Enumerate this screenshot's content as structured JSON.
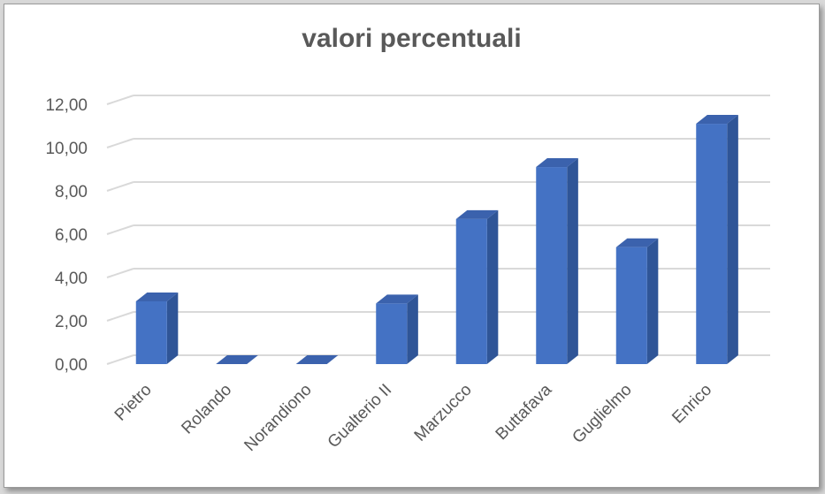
{
  "chart_data": {
    "type": "bar",
    "title": "valori percentuali",
    "xlabel": "",
    "ylabel": "",
    "categories": [
      "Pietro",
      "Rolando",
      "Norandiono",
      "Gualterio II",
      "Marzucco",
      "Buttafava",
      "Guglielmo",
      "Enrico"
    ],
    "values": [
      2.9,
      0.0,
      0.0,
      2.8,
      6.7,
      9.1,
      5.4,
      11.1
    ],
    "ylim": [
      0,
      12
    ],
    "y_ticks": [
      "0,00",
      "2,00",
      "4,00",
      "6,00",
      "8,00",
      "10,00",
      "12,00"
    ],
    "grid": true,
    "legend": "none",
    "style": "3d-column",
    "colors": {
      "bar_front": "#4472c4",
      "bar_side": "#2f5597",
      "bar_top": "#3b62ad",
      "grid": "#d9d9d9",
      "text": "#595959"
    }
  }
}
